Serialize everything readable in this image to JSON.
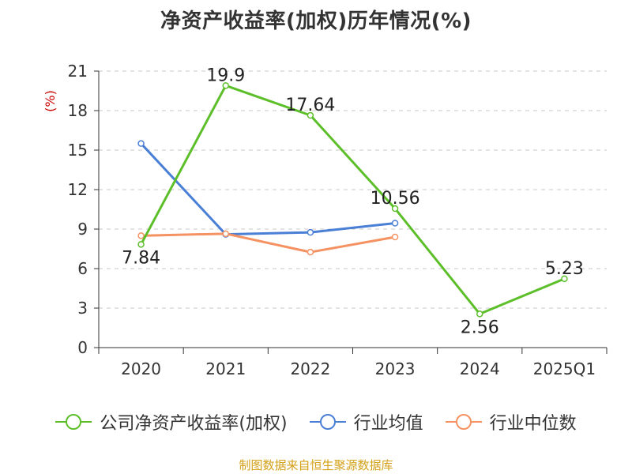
{
  "chart_data": {
    "type": "line",
    "title": "净资产收益率(加权)历年情况(%)",
    "ylabel": "(%)",
    "xlabel": "",
    "categories": [
      "2020",
      "2021",
      "2022",
      "2023",
      "2024",
      "2025Q1"
    ],
    "ylim": [
      0,
      21
    ],
    "yticks": [
      0,
      3,
      6,
      9,
      12,
      15,
      18,
      21
    ],
    "grid": true,
    "legend_position": "bottom",
    "series": [
      {
        "name": "公司净资产收益率(加权)",
        "color": "#5cbf2a",
        "values": [
          7.84,
          19.9,
          17.64,
          10.56,
          2.56,
          5.23
        ],
        "labels": [
          "7.84",
          "19.9",
          "17.64",
          "10.56",
          "2.56",
          "5.23"
        ],
        "show_labels": true
      },
      {
        "name": "行业均值",
        "color": "#4a7fd6",
        "values": [
          15.5,
          8.6,
          8.75,
          9.45,
          null,
          null
        ],
        "show_labels": false
      },
      {
        "name": "行业中位数",
        "color": "#f59262",
        "values": [
          8.5,
          8.65,
          7.25,
          8.4,
          null,
          null
        ],
        "show_labels": false
      }
    ]
  },
  "footer": "制图数据来自恒生聚源数据库"
}
